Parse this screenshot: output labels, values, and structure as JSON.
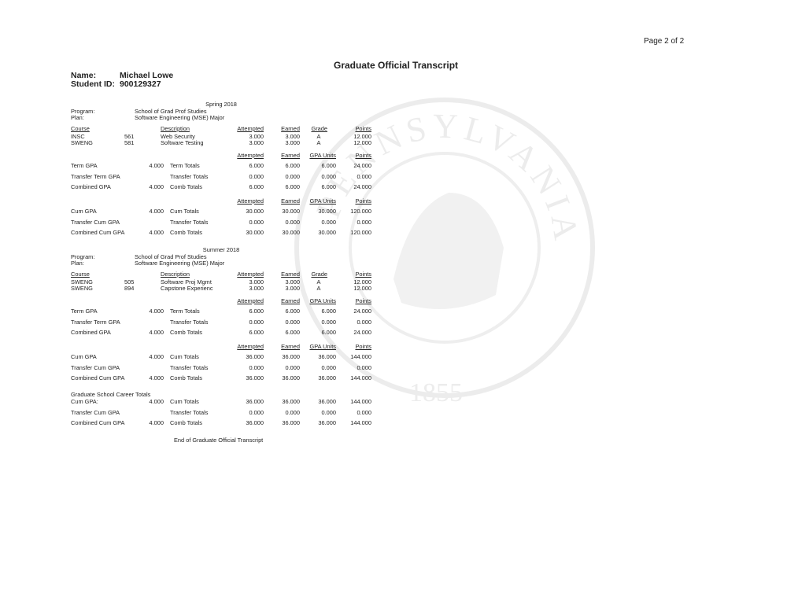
{
  "page_label": "Page 2 of 2",
  "title": "Graduate Official Transcript",
  "student": {
    "name_label": "Name:",
    "name": "Michael Lowe",
    "id_label": "Student ID:",
    "id": "900129327"
  },
  "watermark": {
    "text": "PENNSYLVANIA STATE UNIVERSITY",
    "year": "1855"
  },
  "terms": [
    {
      "title": "Spring 2018",
      "program_label": "Program:",
      "program": "School of Grad Prof Studies",
      "plan_label": "Plan:",
      "plan": "Software Engineering (MSE) Major",
      "course_headers": {
        "course": "Course",
        "description": "Description",
        "attempted": "Attempted",
        "earned": "Earned",
        "grade": "Grade",
        "points": "Points"
      },
      "courses": [
        {
          "subject": "INSC",
          "number": "561",
          "description": "Web Security",
          "attempted": "3.000",
          "earned": "3.000",
          "grade": "A",
          "points": "12.000"
        },
        {
          "subject": "SWENG",
          "number": "581",
          "description": "Software Testing",
          "attempted": "3.000",
          "earned": "3.000",
          "grade": "A",
          "points": "12.000"
        }
      ],
      "term_headers": {
        "attempted": "Attempted",
        "earned": "Earned",
        "gpa_units": "GPA Units",
        "points": "Points"
      },
      "term_rows": [
        {
          "label": "Term GPA",
          "gpa": "4.000",
          "totals": "Term Totals",
          "attempted": "6.000",
          "earned": "6.000",
          "gpa_units": "6.000",
          "points": "24.000"
        },
        {
          "label": "Transfer Term GPA",
          "gpa": "",
          "totals": "Transfer Totals",
          "attempted": "0.000",
          "earned": "0.000",
          "gpa_units": "0.000",
          "points": "0.000"
        },
        {
          "label": "Combined GPA",
          "gpa": "4.000",
          "totals": "Comb Totals",
          "attempted": "6.000",
          "earned": "6.000",
          "gpa_units": "6.000",
          "points": "24.000"
        }
      ],
      "cum_headers": {
        "attempted": "Attempted",
        "earned": "Earned",
        "gpa_units": "GPA Units",
        "points": "Points"
      },
      "cum_rows": [
        {
          "label": "Cum GPA",
          "gpa": "4.000",
          "totals": "Cum Totals",
          "attempted": "30.000",
          "earned": "30.000",
          "gpa_units": "30.000",
          "points": "120.000"
        },
        {
          "label": "Transfer Cum GPA",
          "gpa": "",
          "totals": "Transfer  Totals",
          "attempted": "0.000",
          "earned": "0.000",
          "gpa_units": "0.000",
          "points": "0.000"
        },
        {
          "label": "Combined Cum GPA",
          "gpa": "4.000",
          "totals": "Comb Totals",
          "attempted": "30.000",
          "earned": "30.000",
          "gpa_units": "30.000",
          "points": "120.000"
        }
      ]
    },
    {
      "title": "Summer 2018",
      "program_label": "Program:",
      "program": "School of Grad Prof Studies",
      "plan_label": "Plan:",
      "plan": "Software Engineering (MSE) Major",
      "course_headers": {
        "course": "Course",
        "description": "Description",
        "attempted": "Attempted",
        "earned": "Earned",
        "grade": "Grade",
        "points": "Points"
      },
      "courses": [
        {
          "subject": "SWENG",
          "number": "505",
          "description": "Software Proj Mgmt",
          "attempted": "3.000",
          "earned": "3.000",
          "grade": "A",
          "points": "12.000"
        },
        {
          "subject": "SWENG",
          "number": "894",
          "description": "Capstone Experienc",
          "attempted": "3.000",
          "earned": "3.000",
          "grade": "A",
          "points": "12.000"
        }
      ],
      "term_headers": {
        "attempted": "Attempted",
        "earned": "Earned",
        "gpa_units": "GPA Units",
        "points": "Points"
      },
      "term_rows": [
        {
          "label": "Term GPA",
          "gpa": "4.000",
          "totals": "Term Totals",
          "attempted": "6.000",
          "earned": "6.000",
          "gpa_units": "6.000",
          "points": "24.000"
        },
        {
          "label": "Transfer Term GPA",
          "gpa": "",
          "totals": "Transfer Totals",
          "attempted": "0.000",
          "earned": "0.000",
          "gpa_units": "0.000",
          "points": "0.000"
        },
        {
          "label": "Combined GPA",
          "gpa": "4.000",
          "totals": "Comb Totals",
          "attempted": "6.000",
          "earned": "6.000",
          "gpa_units": "6.000",
          "points": "24.000"
        }
      ],
      "cum_headers": {
        "attempted": "Attempted",
        "earned": "Earned",
        "gpa_units": "GPA Units",
        "points": "Points"
      },
      "cum_rows": [
        {
          "label": "Cum GPA",
          "gpa": "4.000",
          "totals": "Cum Totals",
          "attempted": "36.000",
          "earned": "36.000",
          "gpa_units": "36.000",
          "points": "144.000"
        },
        {
          "label": "Transfer Cum GPA",
          "gpa": "",
          "totals": "Transfer  Totals",
          "attempted": "0.000",
          "earned": "0.000",
          "gpa_units": "0.000",
          "points": "0.000"
        },
        {
          "label": "Combined Cum GPA",
          "gpa": "4.000",
          "totals": "Comb Totals",
          "attempted": "36.000",
          "earned": "36.000",
          "gpa_units": "36.000",
          "points": "144.000"
        }
      ]
    }
  ],
  "career": {
    "title": "Graduate School Career Totals",
    "rows": [
      {
        "label": "Cum GPA:",
        "gpa": "4.000",
        "totals": "Cum Totals",
        "attempted": "36.000",
        "earned": "36.000",
        "gpa_units": "36.000",
        "points": "144.000"
      },
      {
        "label": "Transfer Cum GPA",
        "gpa": "",
        "totals": "Transfer  Totals",
        "attempted": "0.000",
        "earned": "0.000",
        "gpa_units": "0.000",
        "points": "0.000"
      },
      {
        "label": "Combined Cum GPA",
        "gpa": "4.000",
        "totals": "Comb Totals",
        "attempted": "36.000",
        "earned": "36.000",
        "gpa_units": "36.000",
        "points": "144.000"
      }
    ]
  },
  "footer": "End of Graduate Official Transcript"
}
